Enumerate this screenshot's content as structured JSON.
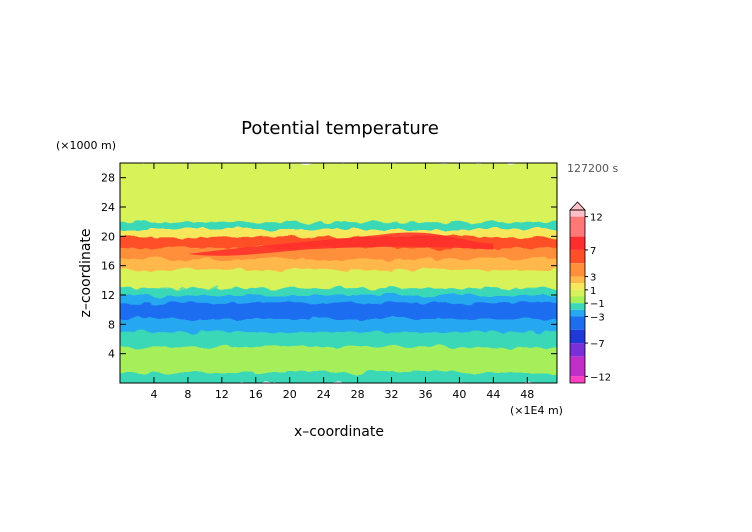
{
  "chart_data": {
    "type": "heatmap",
    "title": "Potential temperature",
    "xlabel": "x–coordinate",
    "ylabel": "z–coordinate",
    "x_unit": "(×1E4 m)",
    "y_unit": "(×1000 m)",
    "time_label": "127200 s",
    "xlim": [
      0,
      51.5
    ],
    "ylim": [
      0,
      30
    ],
    "x_ticks": [
      "4",
      "8",
      "12",
      "16",
      "20",
      "24",
      "28",
      "32",
      "36",
      "40",
      "44",
      "48"
    ],
    "y_ticks": [
      "4",
      "8",
      "12",
      "16",
      "20",
      "24",
      "28"
    ],
    "colorbar": {
      "labels": [
        {
          "value": 12,
          "text": "12"
        },
        {
          "value": 7,
          "text": "7"
        },
        {
          "value": 3,
          "text": "3"
        },
        {
          "value": 1,
          "text": "1"
        },
        {
          "value": -1,
          "text": "−1"
        },
        {
          "value": -3,
          "text": "−3"
        },
        {
          "value": -7,
          "text": "−7"
        },
        {
          "value": -12,
          "text": "−12"
        }
      ],
      "levels": [
        {
          "lo": 12,
          "hi": 13,
          "color": "#ffc0c8"
        },
        {
          "lo": 9,
          "hi": 12,
          "color": "#ff7878"
        },
        {
          "lo": 7,
          "hi": 9,
          "color": "#ff2d2d"
        },
        {
          "lo": 5,
          "hi": 7,
          "color": "#ff4f28"
        },
        {
          "lo": 3,
          "hi": 5,
          "color": "#ff8f3a"
        },
        {
          "lo": 2,
          "hi": 3,
          "color": "#ffb84a"
        },
        {
          "lo": 1,
          "hi": 2,
          "color": "#f6e85a"
        },
        {
          "lo": 0,
          "hi": 1,
          "color": "#d8f25a"
        },
        {
          "lo": -1,
          "hi": 0,
          "color": "#a6ef5a"
        },
        {
          "lo": -2,
          "hi": -1,
          "color": "#3bd8b8"
        },
        {
          "lo": -3,
          "hi": -2,
          "color": "#27a8f0"
        },
        {
          "lo": -5,
          "hi": -3,
          "color": "#1e6df0"
        },
        {
          "lo": -7,
          "hi": -5,
          "color": "#2038d8"
        },
        {
          "lo": -9,
          "hi": -7,
          "color": "#7a30d8"
        },
        {
          "lo": -12,
          "hi": -9,
          "color": "#c030c8"
        },
        {
          "lo": -13,
          "hi": -12,
          "color": "#ff40c0"
        }
      ]
    },
    "bands": [
      {
        "z": [
          0,
          1.5
        ],
        "value": -1.5
      },
      {
        "z": [
          1.5,
          5
        ],
        "value": -0.5
      },
      {
        "z": [
          5,
          7
        ],
        "value": -1.5
      },
      {
        "z": [
          7,
          8
        ],
        "value": -2.5
      },
      {
        "z": [
          8,
          8.8
        ],
        "value": -3
      },
      {
        "z": [
          8.8,
          11
        ],
        "value": -4
      },
      {
        "z": [
          11,
          12
        ],
        "value": -3
      },
      {
        "z": [
          12,
          13
        ],
        "value": -1.5
      },
      {
        "z": [
          13,
          15.5
        ],
        "value": 0.5
      },
      {
        "z": [
          15.5,
          17
        ],
        "value": 2
      },
      {
        "z": [
          17,
          18.5
        ],
        "value": 3.5
      },
      {
        "z": [
          18.5,
          20
        ],
        "value": 5.5
      },
      {
        "z": [
          20,
          21
        ],
        "value": 1.5
      },
      {
        "z": [
          21,
          22
        ],
        "value": -1.5
      },
      {
        "z": [
          22,
          30
        ],
        "value": 0.5
      }
    ]
  }
}
